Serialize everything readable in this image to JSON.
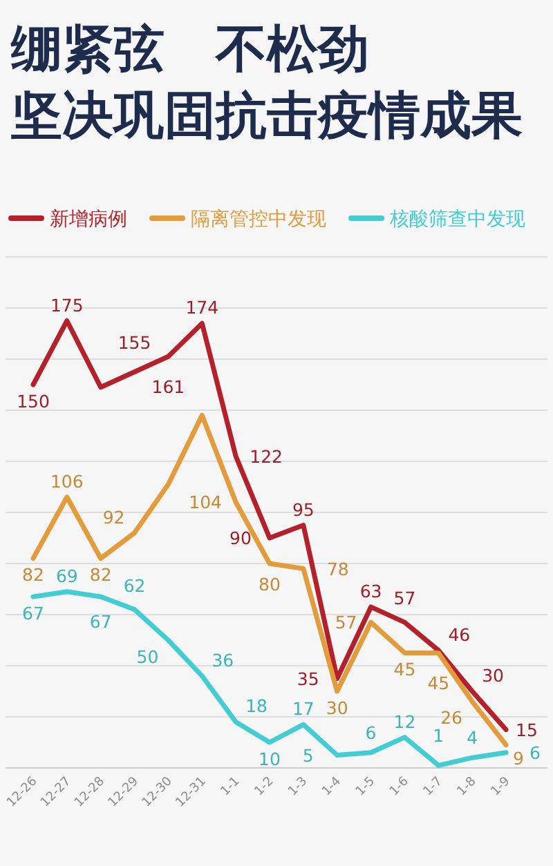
{
  "chart_data": {
    "type": "line",
    "title": "绷紧弦　不松劲",
    "subtitle": "坚决巩固抗击疫情成果",
    "categories": [
      "12-26",
      "12-27",
      "12-28",
      "12-29",
      "12-30",
      "12-31",
      "1-1",
      "1-2",
      "1-3",
      "1-4",
      "1-5",
      "1-6",
      "1-7",
      "1-8",
      "1-9"
    ],
    "series": [
      {
        "name": "新增病例",
        "color": "#b5212b",
        "values": [
          150,
          175,
          149,
          155,
          161,
          174,
          122,
          90,
          95,
          35,
          63,
          57,
          46,
          30,
          15
        ],
        "value_labels": [
          "150",
          "175",
          null,
          "155",
          "161",
          "174",
          "122",
          "90",
          "95",
          "35",
          "63",
          "57",
          "46",
          "30",
          "15"
        ]
      },
      {
        "name": "隔离管控中发现",
        "color": "#e39b3c",
        "values": [
          82,
          106,
          82,
          92,
          111,
          138,
          104,
          80,
          78,
          30,
          57,
          45,
          45,
          26,
          9
        ],
        "value_labels": [
          "82",
          "106",
          "82",
          "92",
          null,
          null,
          "104",
          "80",
          "78",
          "30",
          "57",
          "45",
          "45",
          "26",
          "9"
        ]
      },
      {
        "name": "核酸筛查中发现",
        "color": "#42cdd4",
        "values": [
          67,
          69,
          67,
          62,
          50,
          36,
          18,
          10,
          17,
          5,
          6,
          12,
          1,
          4,
          6
        ],
        "value_labels": [
          "67",
          "69",
          "67",
          "62",
          "50",
          "36",
          "18",
          "10",
          "17",
          "5",
          "6",
          "12",
          "1",
          "4",
          "6"
        ]
      }
    ],
    "ylim": [
      0,
      200
    ],
    "yticks": [
      {
        "value": 0,
        "label": null
      },
      {
        "value": 20,
        "label": null
      },
      {
        "value": 40,
        "label": null
      },
      {
        "value": 60,
        "label": null
      },
      {
        "value": 80,
        "label": null
      },
      {
        "value": 100,
        "label": null
      },
      {
        "value": 120,
        "label": null
      },
      {
        "value": 140,
        "label": null
      },
      {
        "value": 160,
        "label": null
      },
      {
        "value": 180,
        "label": null
      },
      {
        "value": 200,
        "label": null
      }
    ],
    "tick_labels": "x",
    "grid": "y",
    "legend": "top"
  }
}
